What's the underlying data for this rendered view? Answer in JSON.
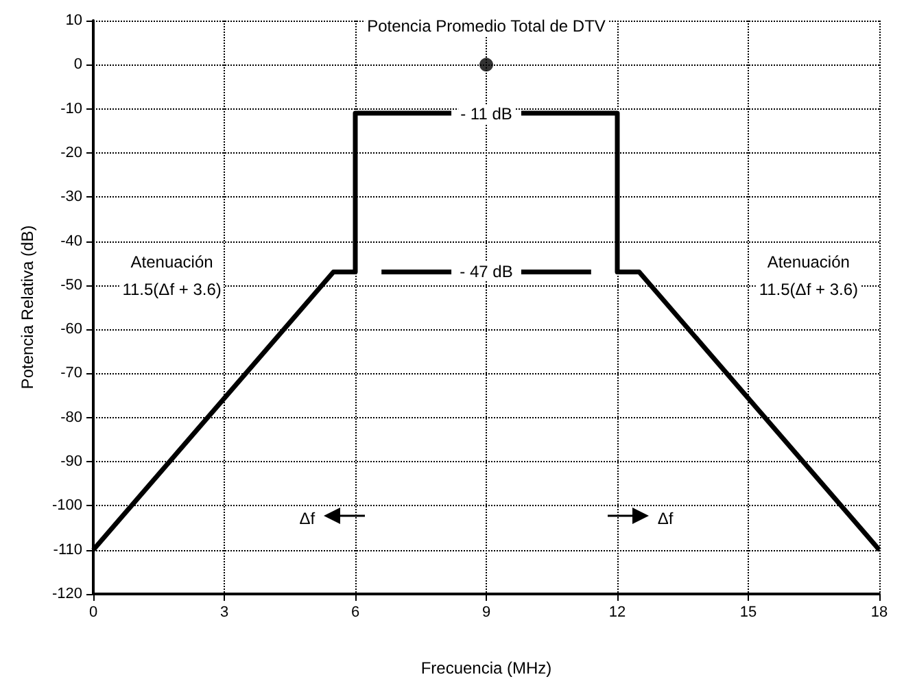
{
  "chart_data": {
    "type": "line",
    "xlabel": "Frecuencia (MHz)",
    "ylabel": "Potencia Relativa (dB)",
    "xlim": [
      0,
      18
    ],
    "xticks": [
      0,
      3,
      6,
      9,
      12,
      15,
      18
    ],
    "ylim": [
      -120,
      10
    ],
    "yticks": [
      10,
      0,
      -10,
      -20,
      -30,
      -40,
      -50,
      -60,
      -70,
      -80,
      -90,
      -100,
      -110,
      -120
    ],
    "grid": true,
    "series": [
      {
        "color": "#000000",
        "x": [
          0,
          5.5,
          6,
          6,
          8.2,
          null,
          9.8,
          12,
          12,
          12.5,
          18
        ],
        "values": [
          -110,
          -47,
          -47,
          -11,
          -11,
          null,
          -11,
          -11,
          -47,
          -47,
          -110
        ]
      },
      {
        "color": "#000000",
        "x": [
          6.6,
          8.2,
          null,
          9.8,
          11.4
        ],
        "values": [
          -47,
          -47,
          null,
          -47,
          -47
        ]
      },
      {
        "type": "scatter",
        "color": "#000000",
        "x": [
          9
        ],
        "values": [
          0
        ]
      }
    ],
    "annotations": [
      {
        "text": "Potencia Promedio Total de DTV",
        "x": 9,
        "y": 0
      },
      {
        "text": "- 11 dB",
        "x": 9,
        "y": -11
      },
      {
        "text": "- 47 dB",
        "x": 9,
        "y": -47
      },
      "Atenuación",
      "11.5(Δf + 3.6)",
      "Atenuación",
      "11.5(Δf + 3.6)",
      {
        "text": "Δf",
        "x": 4.9,
        "y": -103
      },
      {
        "text": "Δf",
        "x": 13.1,
        "y": -103
      }
    ]
  }
}
